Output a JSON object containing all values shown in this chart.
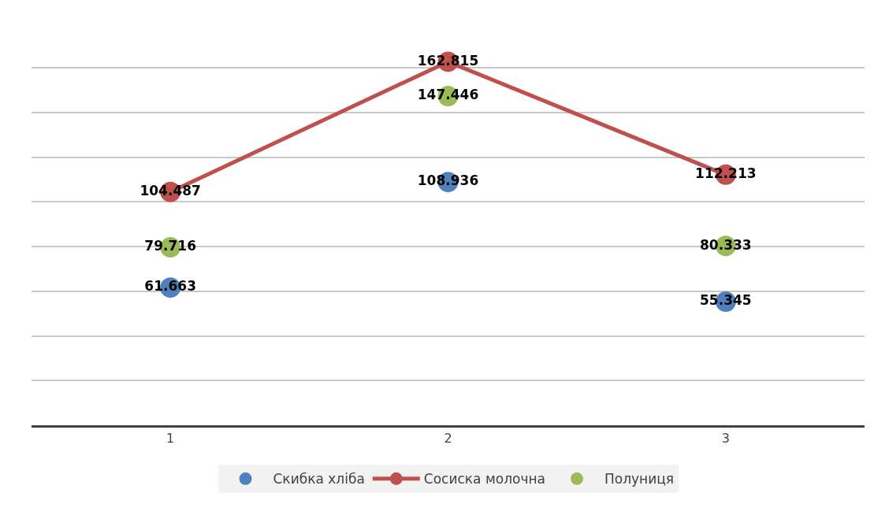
{
  "chart_data": {
    "type": "scatter",
    "categories": [
      "1",
      "2",
      "3"
    ],
    "series": [
      {
        "name": "Скибка хліба",
        "color": "#4f81bd",
        "values": [
          61.663,
          108.936,
          55.345
        ]
      },
      {
        "name": "Сосиска молочна",
        "color": "#c0504d",
        "type": "line",
        "values": [
          104.487,
          162.815,
          112.213
        ]
      },
      {
        "name": "Полуниця",
        "color": "#9bbb59",
        "values": [
          79.716,
          147.446,
          80.333
        ]
      }
    ],
    "grid": "y",
    "legend": "bottom",
    "marker": "circle",
    "data_labels": true,
    "tick_labels": "x"
  }
}
